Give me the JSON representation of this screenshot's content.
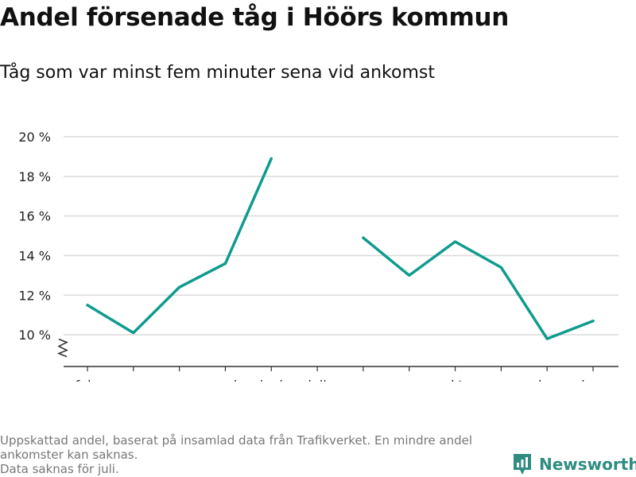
{
  "title": "Andel försenade tåg i Höörs kommun",
  "subtitle": "Tåg som var minst fem minuter sena vid ankomst",
  "footnote": {
    "line1": "Uppskattad andel, baserat på insamlad data från Trafikverket. En mindre andel",
    "line2": "ankomster kan saknas.",
    "line3": "Data saknas för juli."
  },
  "brand": {
    "name": "Newsworthy",
    "icon": "newsworthy-logo-icon",
    "color": "#2f8c82"
  },
  "colors": {
    "line": "#0f9b8e",
    "grid": "#d9d9d9",
    "axis": "#333333"
  },
  "chart_data": {
    "type": "line",
    "title": "Andel försenade tåg i Höörs kommun",
    "subtitle": "Tåg som var minst fem minuter sena vid ankomst",
    "xlabel": "",
    "ylabel": "",
    "categories": [
      "feb.",
      "mars",
      "apr.",
      "maj",
      "juni",
      "juli",
      "aug.",
      "sep.",
      "okt.",
      "nov.",
      "dec.",
      "jan."
    ],
    "series": [
      {
        "values": [
          11.5,
          10.1,
          12.4,
          13.6,
          18.9,
          null,
          14.9,
          13.0,
          14.7,
          13.4,
          9.8,
          10.7
        ]
      }
    ],
    "ylim": [
      8.4,
      20
    ],
    "yticks": [
      10,
      12,
      14,
      16,
      18,
      20
    ],
    "ytick_labels": [
      "10 %",
      "12 %",
      "14 %",
      "16 %",
      "18 %",
      "20 %"
    ],
    "grid": true,
    "axis_break": true
  }
}
